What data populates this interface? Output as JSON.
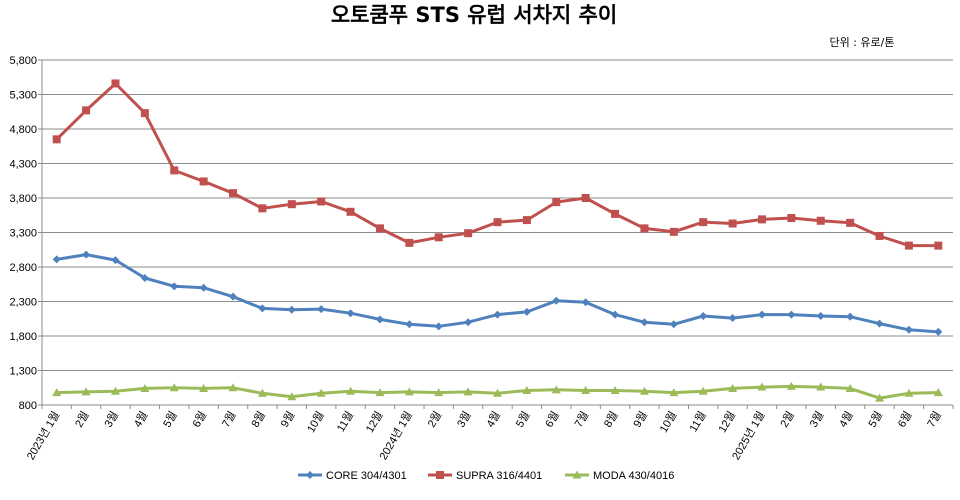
{
  "chart_data": {
    "type": "line",
    "title": "오토쿰푸 STS 유럽 서차지 추이",
    "unit_note": "단위 : 유로/톤",
    "xlabel": "",
    "ylabel": "",
    "ylim": [
      800,
      5800
    ],
    "yticks": [
      "800",
      "1,300",
      "1,800",
      "2,300",
      "2,800",
      "3,300",
      "3,800",
      "4,300",
      "4,800",
      "5,300",
      "5,800"
    ],
    "ytick_values": [
      800,
      1300,
      1800,
      2300,
      2800,
      3300,
      3800,
      4300,
      4800,
      5300,
      5800
    ],
    "grid": true,
    "legend_position": "bottom",
    "categories": [
      "2023년 1월",
      "2월",
      "3월",
      "4월",
      "5월",
      "6월",
      "7월",
      "8월",
      "9월",
      "10월",
      "11월",
      "12월",
      "2024년 1월",
      "2월",
      "3월",
      "4월",
      "5월",
      "6월",
      "7월",
      "8월",
      "9월",
      "10월",
      "11월",
      "12월",
      "2025년 1월",
      "2월",
      "3월",
      "4월",
      "5월",
      "6월",
      "7월"
    ],
    "series": [
      {
        "name": "CORE 304/4301",
        "color": "#4F81BD",
        "marker": "diamond",
        "values": [
          2910,
          2980,
          2900,
          2640,
          2520,
          2500,
          2370,
          2200,
          2180,
          2190,
          2130,
          2040,
          1970,
          1940,
          2000,
          2110,
          2150,
          2310,
          2290,
          2110,
          2000,
          1970,
          2090,
          2060,
          2110,
          2110,
          2090,
          2080,
          1980,
          1890,
          1860
        ]
      },
      {
        "name": "SUPRA 316/4401",
        "color": "#C0504D",
        "marker": "square",
        "values": [
          4650,
          5070,
          5460,
          5030,
          4200,
          4040,
          3870,
          3650,
          3710,
          3750,
          3600,
          3360,
          3150,
          3230,
          3290,
          3450,
          3480,
          3740,
          3800,
          3570,
          3360,
          3310,
          3450,
          3430,
          3490,
          3510,
          3470,
          3440,
          3250,
          3110,
          3110
        ]
      },
      {
        "name": "MODA 430/4016",
        "color": "#9BBB59",
        "marker": "triangle",
        "values": [
          980,
          990,
          1000,
          1040,
          1050,
          1040,
          1050,
          970,
          920,
          970,
          1000,
          980,
          990,
          980,
          990,
          970,
          1010,
          1020,
          1010,
          1010,
          1000,
          980,
          1000,
          1040,
          1060,
          1070,
          1060,
          1040,
          900,
          970,
          980
        ]
      }
    ]
  }
}
